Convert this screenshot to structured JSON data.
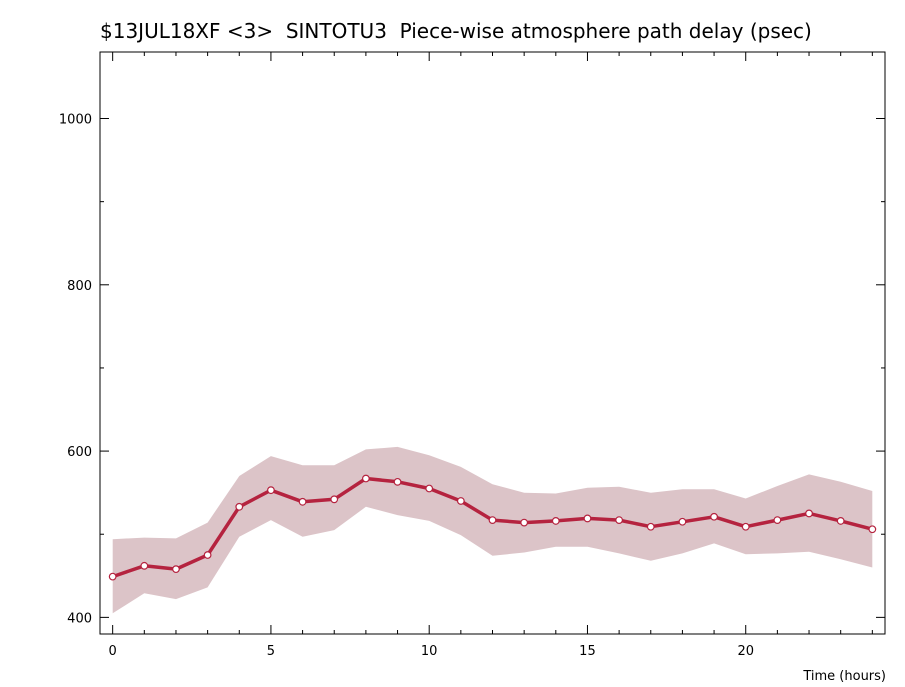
{
  "chart_data": {
    "type": "line",
    "title": "$13JUL18XF <3>  SINTOTU3  Piece-wise atmosphere path delay (psec)",
    "xlabel": "Time (hours)",
    "ylabel": "",
    "xlim": [
      -0.4,
      24.4
    ],
    "ylim": [
      380,
      1080
    ],
    "x_ticks": [
      0,
      5,
      10,
      15,
      20
    ],
    "y_ticks": [
      400,
      600,
      800,
      1000
    ],
    "grid": false,
    "legend": "none",
    "colors": {
      "line": "#b5233f",
      "band": "#dcc4c8",
      "marker_fill": "#ffffff"
    },
    "series": [
      {
        "x": [
          0,
          1,
          2,
          3,
          4,
          5,
          6,
          7,
          8,
          9,
          10,
          11,
          12,
          13,
          14,
          15,
          16,
          17,
          18,
          19,
          20,
          21,
          22,
          23,
          24
        ],
        "values": [
          449,
          462,
          458,
          475,
          533,
          553,
          539,
          542,
          567,
          563,
          555,
          540,
          517,
          514,
          516,
          519,
          517,
          509,
          515,
          521,
          509,
          517,
          525,
          516,
          506
        ],
        "upper": [
          494,
          496,
          495,
          514,
          570,
          594,
          583,
          583,
          602,
          605,
          595,
          581,
          560,
          550,
          549,
          556,
          557,
          550,
          554,
          554,
          543,
          558,
          572,
          563,
          552
        ],
        "lower": [
          405,
          429,
          422,
          436,
          497,
          517,
          497,
          505,
          533,
          523,
          516,
          499,
          474,
          478,
          485,
          485,
          477,
          468,
          477,
          489,
          476,
          477,
          479,
          470,
          460
        ]
      }
    ]
  }
}
